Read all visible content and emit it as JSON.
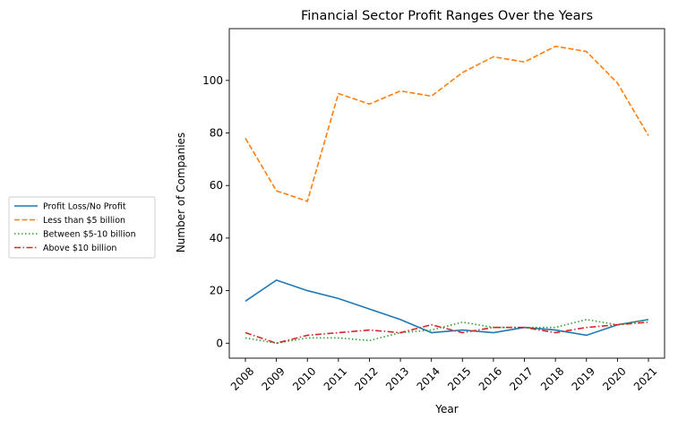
{
  "chart_data": {
    "type": "line",
    "title": "Financial Sector Profit Ranges Over the Years",
    "xlabel": "Year",
    "ylabel": "Number of Companies",
    "categories": [
      "2008",
      "2009",
      "2010",
      "2011",
      "2012",
      "2013",
      "2014",
      "2015",
      "2016",
      "2017",
      "2018",
      "2019",
      "2020",
      "2021"
    ],
    "ylim": [
      -5.7,
      119.7
    ],
    "yticks": [
      0,
      20,
      40,
      60,
      80,
      100
    ],
    "grid": false,
    "legend_position": "outside-left",
    "series": [
      {
        "name": "Profit Loss/No Profit",
        "color": "#1f77b4",
        "dash": "solid",
        "values": [
          16,
          24,
          20,
          17,
          13,
          9,
          4,
          5,
          4,
          6,
          5,
          3,
          7,
          9
        ]
      },
      {
        "name": "Less than $5 billion",
        "color": "#ff7f0e",
        "dash": "dashed",
        "values": [
          78,
          58,
          54,
          95,
          91,
          96,
          94,
          103,
          109,
          107,
          113,
          111,
          99,
          79
        ]
      },
      {
        "name": "Between $5-10 billion",
        "color": "#2ca02c",
        "dash": "dotted",
        "values": [
          2,
          0,
          2,
          2,
          1,
          4,
          5,
          8,
          6,
          6,
          6,
          9,
          7,
          9
        ]
      },
      {
        "name": "Above $10 billion",
        "color": "#d62728",
        "dash": "dashdot",
        "values": [
          4,
          0,
          3,
          4,
          5,
          4,
          7,
          4,
          6,
          6,
          4,
          6,
          7,
          8
        ]
      }
    ]
  }
}
